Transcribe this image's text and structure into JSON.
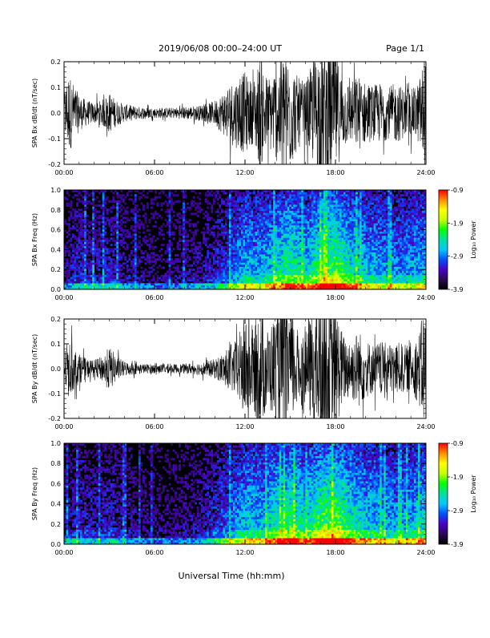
{
  "header": {
    "title": "2019/06/08  00:00–24:00 UT",
    "page": "Page 1/1"
  },
  "footer": {
    "xlabel": "Universal Time (hh:mm)"
  },
  "chart_data": [
    {
      "type": "line",
      "id": "bx_wave",
      "ylabel": "SPA Bx dB/dt (nT/sec)",
      "xlim": [
        0,
        24
      ],
      "ylim": [
        -0.2,
        0.2
      ],
      "x_ticks": [
        "00:00",
        "06:00",
        "12:00",
        "18:00",
        "24:00"
      ],
      "y_ticks": [
        "0.2",
        "0.1",
        "0.0",
        "-0.1",
        "-0.2"
      ],
      "amplitude_profile": {
        "hours": [
          0,
          0.3,
          0.6,
          1,
          1.5,
          2,
          2.5,
          3,
          3.5,
          4,
          5,
          6,
          7,
          8,
          9,
          9.5,
          10,
          10.5,
          11,
          11.5,
          12,
          12.5,
          13,
          13.5,
          14,
          14.5,
          15,
          15.5,
          16,
          16.5,
          17,
          17.5,
          18,
          18.5,
          19,
          19.5,
          20,
          20.5,
          21,
          21.5,
          22,
          22.5,
          23,
          23.5,
          24
        ],
        "amplitude": [
          0.09,
          0.16,
          0.12,
          0.07,
          0.05,
          0.04,
          0.05,
          0.08,
          0.05,
          0.035,
          0.025,
          0.02,
          0.02,
          0.025,
          0.03,
          0.035,
          0.05,
          0.08,
          0.12,
          0.14,
          0.16,
          0.12,
          0.22,
          0.14,
          0.18,
          0.25,
          0.22,
          0.14,
          0.12,
          0.2,
          0.28,
          0.28,
          0.24,
          0.14,
          0.12,
          0.15,
          0.12,
          0.11,
          0.12,
          0.1,
          0.12,
          0.1,
          0.09,
          0.12,
          0.25
        ]
      }
    },
    {
      "type": "heatmap",
      "id": "bx_spec",
      "ylabel": "SPA Bx Freq (Hz)",
      "xlim": [
        0,
        24
      ],
      "ylim": [
        0,
        1
      ],
      "x_ticks": [
        "00:00",
        "06:00",
        "12:00",
        "18:00",
        "24:00"
      ],
      "y_ticks": [
        "1.0",
        "0.8",
        "0.6",
        "0.4",
        "0.2",
        "0.0"
      ],
      "colorbar": {
        "label": "Log₁₀ Power",
        "range": [
          -3.9,
          -0.9
        ],
        "ticks": [
          "-0.9",
          "-1.9",
          "-2.9",
          "-3.9"
        ],
        "colors": [
          "#000000",
          "#2a0a55",
          "#4a00c8",
          "#0050ff",
          "#00c8ff",
          "#00e0a0",
          "#00ff00",
          "#c8ff00",
          "#ffff00",
          "#ff8c00",
          "#ff0000"
        ]
      },
      "activity_profile": [
        0.2,
        0.3,
        0.25,
        0.3,
        0.2,
        0.18,
        0.15,
        0.15,
        0.18,
        0.22,
        0.3,
        0.4,
        0.6,
        0.55,
        0.7,
        0.8,
        0.65,
        0.85,
        0.9,
        0.7,
        0.6,
        0.55,
        0.5,
        0.55,
        0.6
      ]
    },
    {
      "type": "line",
      "id": "by_wave",
      "ylabel": "SPA By dB/dt (nT/sec)",
      "xlim": [
        0,
        24
      ],
      "ylim": [
        -0.2,
        0.2
      ],
      "x_ticks": [
        "00:00",
        "06:00",
        "12:00",
        "18:00",
        "24:00"
      ],
      "y_ticks": [
        "0.2",
        "0.1",
        "0.0",
        "-0.1",
        "-0.2"
      ],
      "amplitude_profile": {
        "hours": [
          0,
          0.3,
          0.6,
          1,
          1.5,
          2,
          2.5,
          3,
          3.5,
          4,
          5,
          6,
          7,
          8,
          9,
          9.5,
          10,
          10.5,
          11,
          11.5,
          12,
          12.5,
          13,
          13.5,
          14,
          14.5,
          15,
          15.5,
          16,
          16.5,
          17,
          17.5,
          18,
          18.5,
          19,
          19.5,
          20,
          20.5,
          21,
          21.5,
          22,
          22.5,
          23,
          23.5,
          24
        ],
        "amplitude": [
          0.07,
          0.12,
          0.09,
          0.06,
          0.04,
          0.035,
          0.05,
          0.09,
          0.05,
          0.03,
          0.02,
          0.018,
          0.018,
          0.02,
          0.025,
          0.03,
          0.04,
          0.06,
          0.09,
          0.12,
          0.22,
          0.16,
          0.26,
          0.16,
          0.22,
          0.28,
          0.24,
          0.16,
          0.14,
          0.24,
          0.3,
          0.3,
          0.26,
          0.14,
          0.12,
          0.16,
          0.12,
          0.1,
          0.11,
          0.1,
          0.11,
          0.1,
          0.09,
          0.14,
          0.28
        ]
      }
    },
    {
      "type": "heatmap",
      "id": "by_spec",
      "ylabel": "SPA By Freq (Hz)",
      "xlim": [
        0,
        24
      ],
      "ylim": [
        0,
        1
      ],
      "x_ticks": [
        "00:00",
        "06:00",
        "12:00",
        "18:00",
        "24:00"
      ],
      "y_ticks": [
        "1.0",
        "0.8",
        "0.6",
        "0.4",
        "0.2",
        "0.0"
      ],
      "colorbar": {
        "label": "Log₁₀ Power",
        "range": [
          -3.9,
          -0.9
        ],
        "ticks": [
          "-0.9",
          "-1.9",
          "-2.9",
          "-3.9"
        ],
        "colors": [
          "#000000",
          "#2a0a55",
          "#4a00c8",
          "#0050ff",
          "#00c8ff",
          "#00e0a0",
          "#00ff00",
          "#c8ff00",
          "#ffff00",
          "#ff8c00",
          "#ff0000"
        ]
      },
      "activity_profile": [
        0.22,
        0.3,
        0.25,
        0.3,
        0.2,
        0.18,
        0.15,
        0.15,
        0.18,
        0.22,
        0.35,
        0.45,
        0.65,
        0.6,
        0.75,
        0.85,
        0.7,
        0.9,
        0.95,
        0.75,
        0.65,
        0.6,
        0.55,
        0.6,
        0.7
      ]
    }
  ]
}
